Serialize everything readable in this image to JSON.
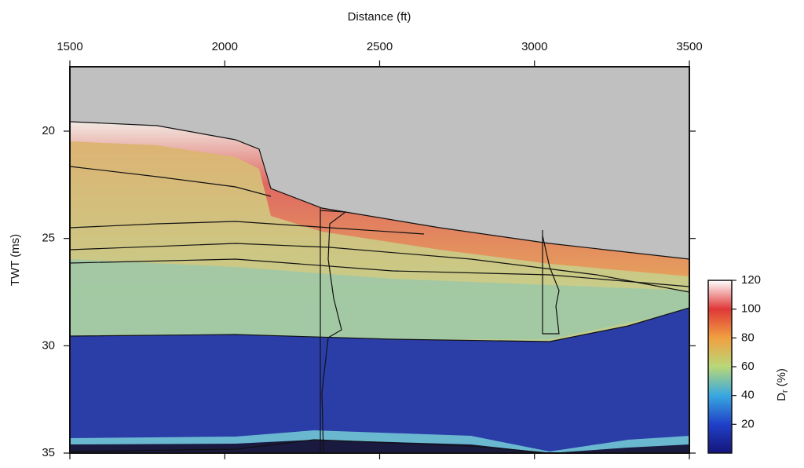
{
  "chart_data": {
    "type": "image",
    "xlabel": "Distance (ft)",
    "ylabel": "TWT (ms)",
    "xlim": [
      1500,
      3500
    ],
    "xticks": [
      1500,
      2000,
      2500,
      3000,
      3500
    ],
    "ylim": [
      17,
      35
    ],
    "y_reversed": true,
    "yticks": [
      20,
      25,
      30,
      35
    ],
    "colorbar": {
      "label": "D",
      "label_subscript": "r",
      "label_unit": "(%)",
      "lim": [
        0,
        120
      ],
      "ticks": [
        20,
        40,
        60,
        80,
        100,
        120
      ],
      "colors": [
        "#15157a",
        "#2040c8",
        "#38a8e0",
        "#b8d878",
        "#f0a040",
        "#e03838",
        "#ffffff"
      ]
    }
  }
}
